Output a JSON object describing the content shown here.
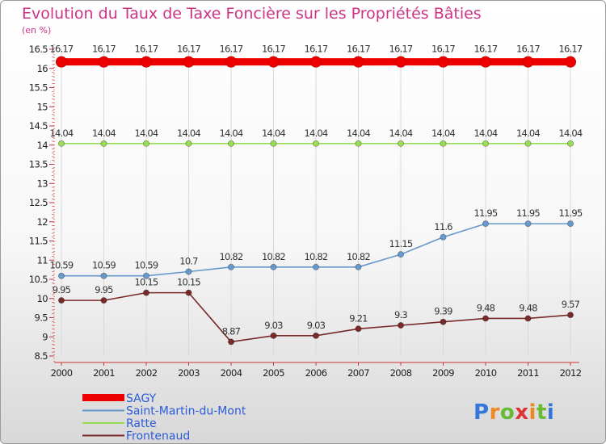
{
  "chart_data": {
    "type": "line",
    "title": "Evolution du Taux de Taxe Foncière sur les Propriétés Bâties",
    "subtitle": "(en %)",
    "categories": [
      "2000",
      "2001",
      "2002",
      "2003",
      "2004",
      "2005",
      "2006",
      "2007",
      "2008",
      "2009",
      "2010",
      "2011",
      "2012"
    ],
    "ylim": [
      8.5,
      16.5
    ],
    "yticks": [
      8.5,
      9,
      9.5,
      10,
      10.5,
      11,
      11.5,
      12,
      12.5,
      13,
      13.5,
      14,
      14.5,
      15,
      15.5,
      16,
      16.5
    ],
    "legend_position": "bottom-left",
    "series": [
      {
        "name": "SAGY",
        "color": "#ee0000",
        "values": [
          16.17,
          16.17,
          16.17,
          16.17,
          16.17,
          16.17,
          16.17,
          16.17,
          16.17,
          16.17,
          16.17,
          16.17,
          16.17
        ],
        "labels": [
          "16.17",
          "16.17",
          "16.17",
          "16.17",
          "16.17",
          "16.17",
          "16.17",
          "16.17",
          "16.17",
          "16.17",
          "16.17",
          "16.17",
          "16.17"
        ]
      },
      {
        "name": "Saint-Martin-du-Mont",
        "color": "#6699cc",
        "values": [
          10.59,
          10.59,
          10.59,
          10.7,
          10.82,
          10.82,
          10.82,
          10.82,
          11.15,
          11.6,
          11.95,
          11.95,
          11.95
        ],
        "labels": [
          "10.59",
          "10.59",
          "10.59",
          "10.7",
          "10.82",
          "10.82",
          "10.82",
          "10.82",
          "11.15",
          "11.6",
          "11.95",
          "11.95",
          "11.95"
        ]
      },
      {
        "name": "Ratte",
        "color": "#99dd55",
        "values": [
          14.04,
          14.04,
          14.04,
          14.04,
          14.04,
          14.04,
          14.04,
          14.04,
          14.04,
          14.04,
          14.04,
          14.04,
          14.04
        ],
        "labels": [
          "14.04",
          "14.04",
          "14.04",
          "14.04",
          "14.04",
          "14.04",
          "14.04",
          "14.04",
          "14.04",
          "14.04",
          "14.04",
          "14.04",
          "14.04"
        ]
      },
      {
        "name": "Frontenaud",
        "color": "#7a2a2a",
        "values": [
          9.95,
          9.95,
          10.15,
          10.15,
          8.87,
          9.03,
          9.03,
          9.21,
          9.3,
          9.39,
          9.48,
          9.48,
          9.57
        ],
        "labels": [
          "9.95",
          "9.95",
          "10.15",
          "10.15",
          "8.87",
          "9.03",
          "9.03",
          "9.21",
          "9.3",
          "9.39",
          "9.48",
          "9.48",
          "9.57"
        ]
      }
    ]
  },
  "brand": {
    "letters": [
      "P",
      "r",
      "o",
      "x",
      "i",
      "t",
      "i"
    ],
    "colors": [
      "#3377dd",
      "#ee8822",
      "#66bb33",
      "#dd3333",
      "#ee8822",
      "#66bb33",
      "#3377dd"
    ]
  }
}
